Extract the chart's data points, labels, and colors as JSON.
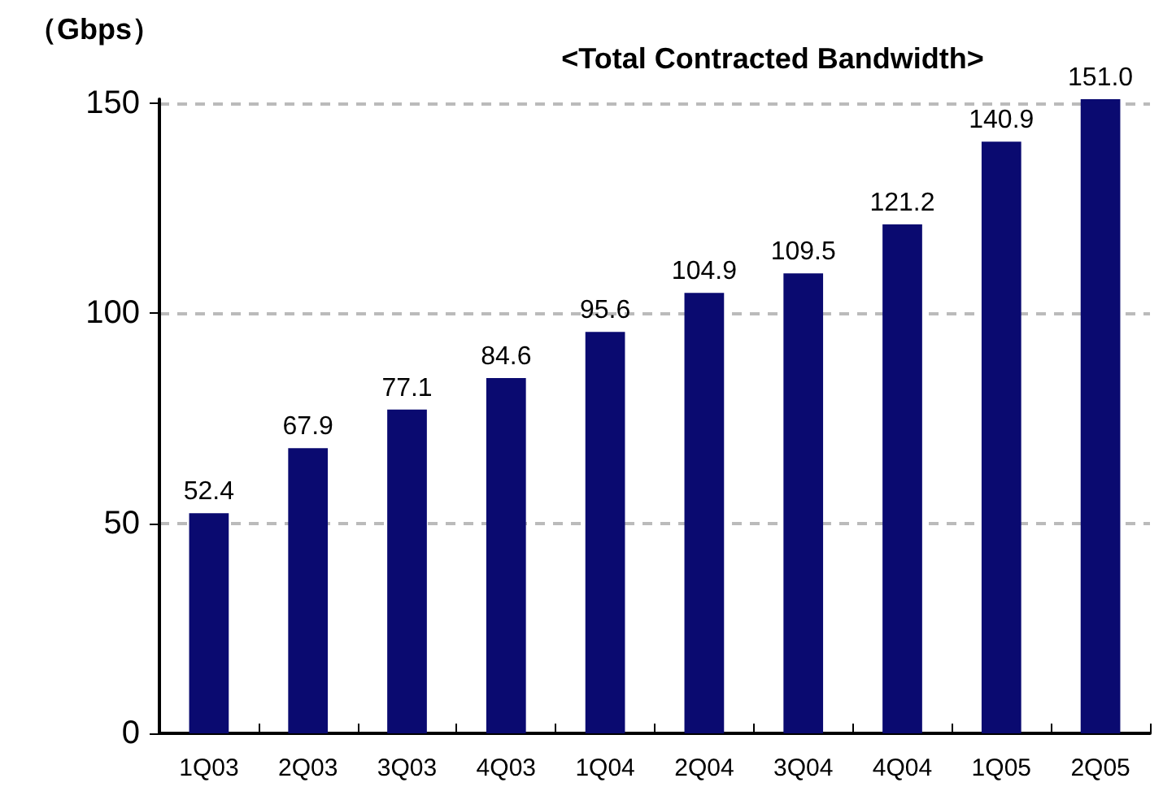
{
  "chart_data": {
    "type": "bar",
    "title": "<Total Contracted Bandwidth>",
    "ylabel": "（Gbps）",
    "categories": [
      "1Q03",
      "2Q03",
      "3Q03",
      "4Q03",
      "1Q04",
      "2Q04",
      "3Q04",
      "4Q04",
      "1Q05",
      "2Q05"
    ],
    "values": [
      52.4,
      67.9,
      77.1,
      84.6,
      95.6,
      104.9,
      109.5,
      121.2,
      140.9,
      151.0
    ],
    "value_labels": [
      "52.4",
      "67.9",
      "77.1",
      "84.6",
      "95.6",
      "104.9",
      "109.5",
      "121.2",
      "140.9",
      "151.0"
    ],
    "color": "#0a0a70",
    "ylim": [
      0,
      151
    ],
    "yticks": [
      0,
      50,
      100,
      150
    ],
    "grid": "y"
  }
}
